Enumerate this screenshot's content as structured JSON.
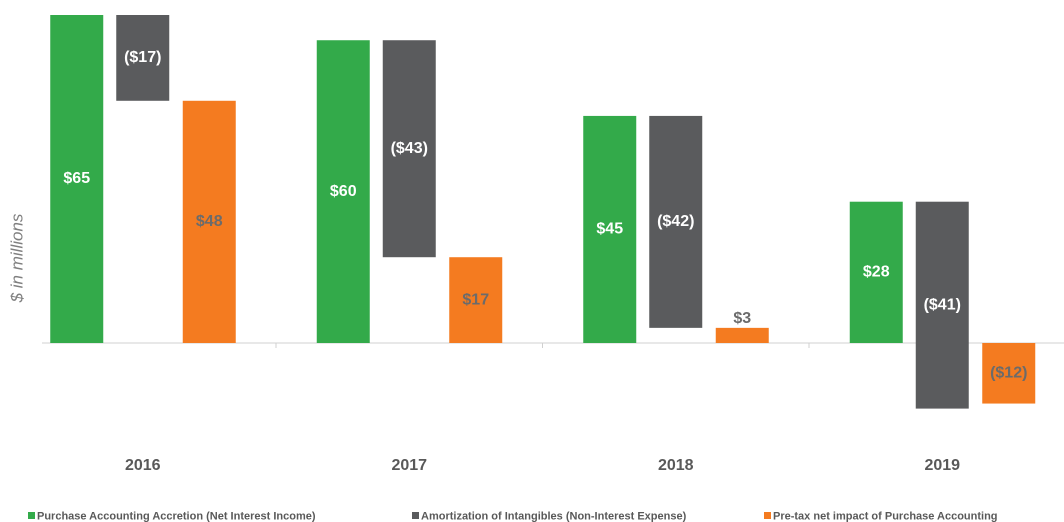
{
  "chart_data": {
    "type": "waterfall",
    "y_label": "$ in millions",
    "categories": [
      "2016",
      "2017",
      "2018",
      "2019"
    ],
    "series": [
      {
        "name": "Purchase Accounting Accretion (Net Interest Income)",
        "color": "#33aa4a",
        "values": [
          65,
          60,
          45,
          28
        ],
        "value_labels": [
          "$65",
          "$60",
          "$45",
          "$28"
        ]
      },
      {
        "name": "Amortization of Intangibles (Non-Interest Expense)",
        "color": "#5a5b5d",
        "values": [
          -17,
          -43,
          -42,
          -41
        ],
        "value_labels": [
          "($17)",
          "($43)",
          "($42)",
          "($41)"
        ]
      },
      {
        "name": "Pre-tax net impact of Purchase Accounting",
        "color": "#f47b20",
        "values": [
          48,
          17,
          3,
          -12
        ],
        "value_labels": [
          "$48",
          "$17",
          "$3",
          "($12)"
        ]
      }
    ],
    "legend": "bottom"
  }
}
